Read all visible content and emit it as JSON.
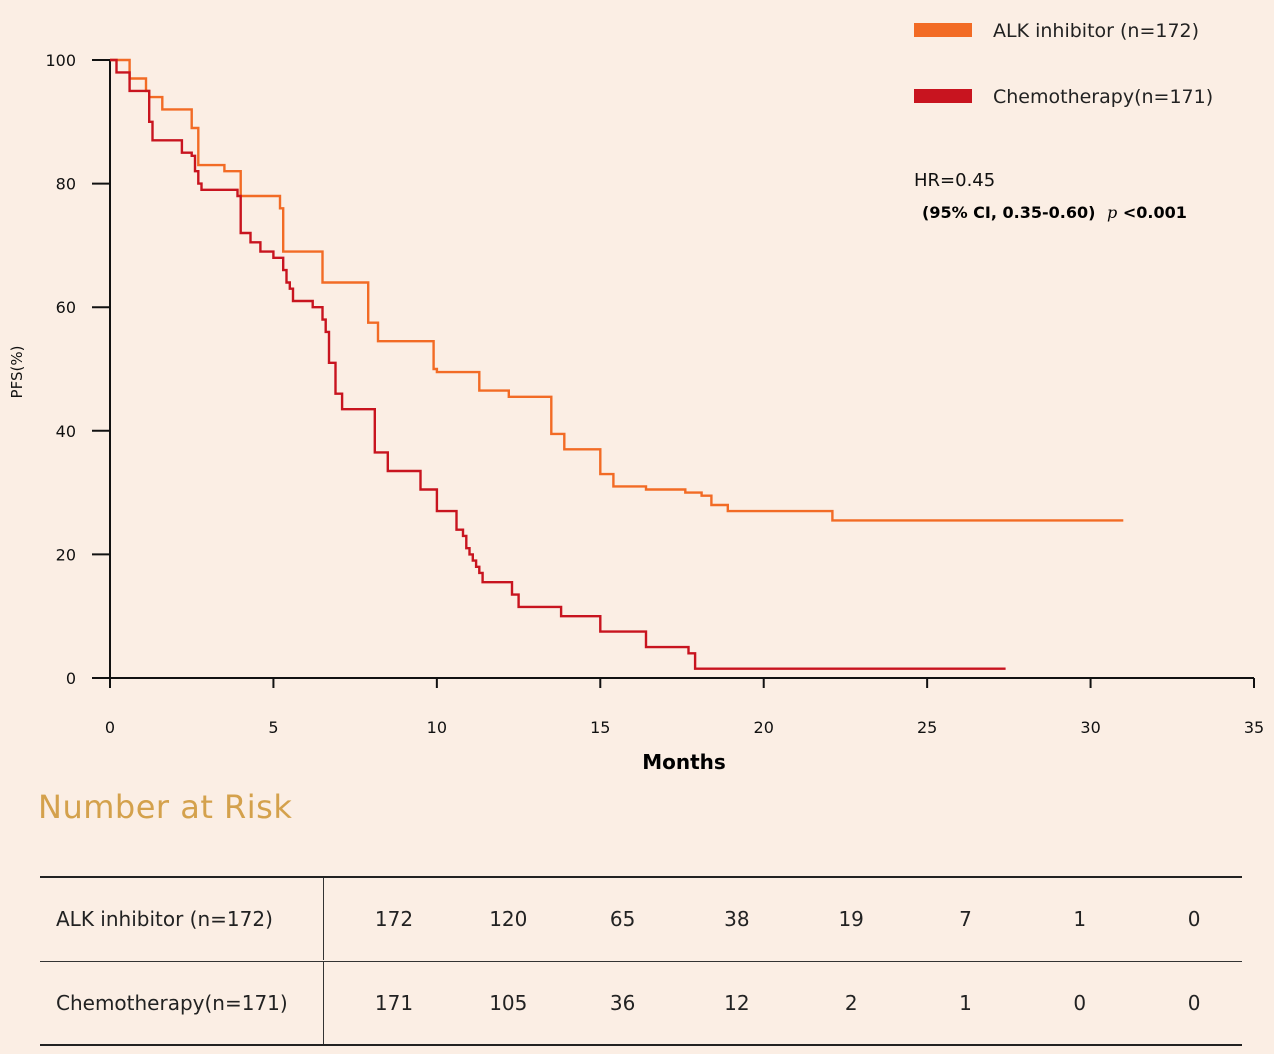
{
  "chart_data": {
    "type": "line",
    "step": true,
    "xlabel": "Months",
    "ylabel": "PFS(%)",
    "xlim": [
      0,
      35
    ],
    "ylim": [
      0,
      100
    ],
    "xticks": [
      0,
      5,
      10,
      15,
      20,
      25,
      30,
      35
    ],
    "yticks": [
      0,
      20,
      40,
      60,
      80,
      100
    ],
    "grid": false,
    "legend_position": "top-right",
    "series": [
      {
        "name": "ALK inhibitor (n=172)",
        "color": "#f26b25",
        "x": [
          0,
          0.6,
          0.6,
          1.1,
          1.1,
          1.2,
          1.6,
          1.6,
          2.1,
          2.5,
          2.7,
          2.7,
          3.2,
          3.5,
          4.0,
          4.0,
          5.0,
          5.2,
          5.3,
          5.3,
          6.0,
          6.5,
          6.5,
          7.0,
          7.9,
          7.9,
          8.2,
          8.2,
          8.8,
          9.9,
          10.0,
          10.9,
          11.3,
          11.3,
          11.9,
          12.2,
          12.2,
          13.5,
          13.5,
          13.9,
          13.9,
          15.0,
          15.0,
          15.4,
          15.4,
          16.0,
          16.4,
          16.4,
          17.6,
          18.1,
          18.4,
          18.4,
          18.9,
          18.9,
          21.7,
          22.1,
          22.1,
          31.0
        ],
        "y": [
          100,
          100,
          97,
          97,
          95,
          94,
          93,
          92,
          92,
          89,
          87,
          83,
          83,
          82,
          80,
          78,
          78,
          76,
          75,
          69,
          69,
          69,
          64,
          64,
          60,
          57.5,
          57.5,
          54.5,
          54.5,
          50,
          49.5,
          49.5,
          47,
          46.5,
          46.5,
          46,
          45.5,
          45.5,
          39.5,
          39,
          37,
          37,
          33,
          33,
          31,
          31,
          30.5,
          30.5,
          30,
          29.5,
          29.5,
          28,
          28,
          27,
          27,
          26,
          25.5,
          25.5
        ]
      },
      {
        "name": "Chemotherapy(n=171)",
        "color": "#c8141f",
        "x": [
          0,
          0.2,
          0.6,
          0.6,
          1.1,
          1.2,
          1.3,
          1.3,
          2.1,
          2.2,
          2.5,
          2.6,
          2.7,
          2.8,
          3.0,
          3.9,
          4.0,
          4.0,
          4.3,
          4.3,
          4.6,
          4.6,
          5.0,
          5.0,
          5.3,
          5.4,
          5.5,
          5.6,
          6.0,
          6.2,
          6.5,
          6.6,
          6.7,
          6.7,
          6.9,
          6.9,
          7.1,
          7.1,
          7.7,
          8.1,
          8.1,
          8.5,
          8.5,
          9.5,
          9.5,
          10.0,
          10.6,
          10.6,
          10.8,
          10.9,
          11.0,
          11.1,
          11.2,
          11.3,
          11.4,
          11.4,
          12.3,
          12.3,
          12.5,
          12.5,
          13.8,
          13.8,
          15.0,
          15.0,
          16.4,
          16.4,
          17.5,
          17.7,
          17.9,
          17.9,
          27.4
        ],
        "y": [
          100,
          98,
          97.5,
          95,
          95,
          90,
          88,
          87,
          87,
          85,
          84.5,
          82,
          80,
          79,
          79,
          78,
          76,
          72,
          72,
          70.5,
          70.5,
          69,
          69,
          68,
          66,
          64,
          63,
          61,
          61,
          60,
          58,
          56,
          52,
          51,
          47,
          46,
          44,
          43.5,
          43.5,
          40,
          36.5,
          33.5,
          33.5,
          31,
          30.5,
          27,
          26.5,
          24,
          23,
          21,
          20,
          19,
          18,
          17,
          16,
          15.5,
          15.5,
          13.5,
          13,
          11.5,
          11.5,
          10,
          10,
          7.5,
          7.5,
          5,
          5,
          4,
          3.5,
          1.5,
          1.5
        ]
      }
    ],
    "annotations": {
      "hr": "HR=0.45",
      "ci": "(95% CI, 0.35-0.60)",
      "p_symbol": "p",
      "p_value": "<0.001"
    },
    "number_at_risk": {
      "title": "Number at Risk",
      "timepoints": [
        0,
        5,
        10,
        15,
        20,
        25,
        30,
        35
      ],
      "rows": [
        {
          "label": "ALK inhibitor (n=172)",
          "values": [
            "172",
            "120",
            "65",
            "38",
            "19",
            "7",
            "1",
            "0"
          ]
        },
        {
          "label": "Chemotherapy(n=171)",
          "values": [
            "171",
            "105",
            "36",
            "12",
            "2",
            "1",
            "0",
            "0"
          ]
        }
      ]
    }
  }
}
